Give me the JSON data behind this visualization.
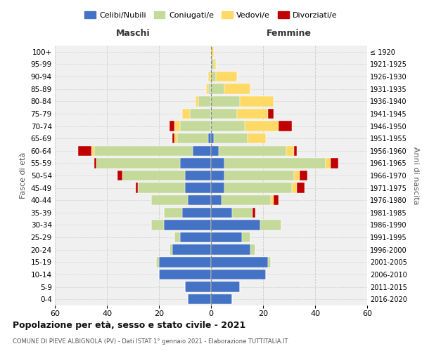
{
  "age_groups_bottom_to_top": [
    "0-4",
    "5-9",
    "10-14",
    "15-19",
    "20-24",
    "25-29",
    "30-34",
    "35-39",
    "40-44",
    "45-49",
    "50-54",
    "55-59",
    "60-64",
    "65-69",
    "70-74",
    "75-79",
    "80-84",
    "85-89",
    "90-94",
    "95-99",
    "100+"
  ],
  "birth_years_bottom_to_top": [
    "2016-2020",
    "2011-2015",
    "2006-2010",
    "2001-2005",
    "1996-2000",
    "1991-1995",
    "1986-1990",
    "1981-1985",
    "1976-1980",
    "1971-1975",
    "1966-1970",
    "1961-1965",
    "1956-1960",
    "1951-1955",
    "1946-1950",
    "1941-1945",
    "1936-1940",
    "1931-1935",
    "1926-1930",
    "1921-1925",
    "≤ 1920"
  ],
  "colors": {
    "celibi": "#4472C4",
    "coniugati": "#C5D99A",
    "vedovi": "#FFD966",
    "divorziati": "#C00000"
  },
  "maschi": {
    "celibi": [
      9,
      10,
      20,
      20,
      15,
      12,
      18,
      11,
      9,
      10,
      10,
      12,
      7,
      1,
      0,
      0,
      0,
      0,
      0,
      0,
      0
    ],
    "coniugati": [
      0,
      0,
      0,
      1,
      1,
      2,
      5,
      7,
      14,
      18,
      24,
      32,
      38,
      12,
      12,
      8,
      5,
      1,
      0,
      0,
      0
    ],
    "vedovi": [
      0,
      0,
      0,
      0,
      0,
      0,
      0,
      0,
      0,
      0,
      0,
      0,
      1,
      1,
      2,
      3,
      1,
      1,
      1,
      0,
      0
    ],
    "divorziati": [
      0,
      0,
      0,
      0,
      0,
      0,
      0,
      0,
      0,
      1,
      2,
      1,
      5,
      1,
      2,
      0,
      0,
      0,
      0,
      0,
      0
    ]
  },
  "femmine": {
    "celibi": [
      8,
      11,
      21,
      22,
      15,
      12,
      19,
      8,
      4,
      5,
      5,
      5,
      3,
      1,
      0,
      0,
      0,
      0,
      0,
      0,
      0
    ],
    "coniugati": [
      0,
      0,
      0,
      1,
      2,
      3,
      8,
      8,
      19,
      26,
      27,
      39,
      26,
      13,
      13,
      10,
      11,
      5,
      2,
      1,
      0
    ],
    "vedovi": [
      0,
      0,
      0,
      0,
      0,
      0,
      0,
      0,
      1,
      2,
      2,
      2,
      3,
      7,
      13,
      12,
      13,
      10,
      8,
      1,
      1
    ],
    "divorziati": [
      0,
      0,
      0,
      0,
      0,
      0,
      0,
      1,
      2,
      3,
      3,
      3,
      1,
      0,
      5,
      2,
      0,
      0,
      0,
      0,
      0
    ]
  },
  "xlim": 60,
  "title_main": "Popolazione per età, sesso e stato civile - 2021",
  "title_sub": "COMUNE DI PIEVE ALBIGNOLA (PV) - Dati ISTAT 1° gennaio 2021 - Elaborazione TUTTITALIA.IT",
  "label_maschi": "Maschi",
  "label_femmine": "Femmine",
  "ylabel_left": "Fasce di età",
  "ylabel_right": "Anni di nascita",
  "legend_labels": [
    "Celibi/Nubili",
    "Coniugati/e",
    "Vedovi/e",
    "Divorziati/e"
  ],
  "background_color": "#f0f0f0",
  "grid_color": "#cccccc"
}
